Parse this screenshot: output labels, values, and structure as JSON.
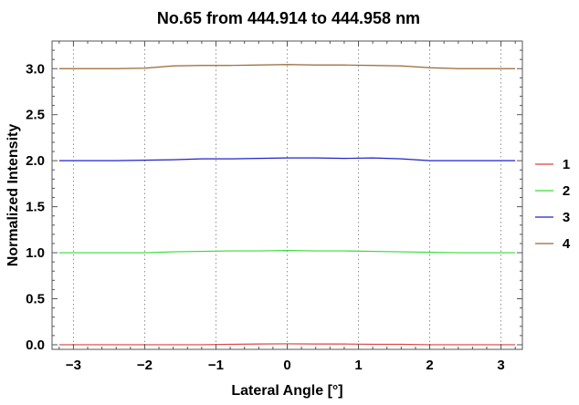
{
  "chart_data": {
    "type": "line",
    "title": "No.65  from 444.914 to 444.958 nm",
    "xlabel": "Lateral Angle [°]",
    "ylabel": "Normalized Intensity",
    "xlim": [
      -3.3,
      3.3
    ],
    "ylim": [
      -0.05,
      3.3
    ],
    "x_ticks": [
      -3,
      -2,
      -1,
      0,
      1,
      2,
      3
    ],
    "x_tick_labels": [
      "−3",
      "−2",
      "−1",
      "0",
      "1",
      "2",
      "3"
    ],
    "y_ticks": [
      0.0,
      0.5,
      1.0,
      1.5,
      2.0,
      2.5,
      3.0
    ],
    "y_tick_labels": [
      "0.0",
      "0.5",
      "1.0",
      "1.5",
      "2.0",
      "2.5",
      "3.0"
    ],
    "x_gridlines": [
      -3,
      -2,
      -1,
      0,
      1,
      2,
      3
    ],
    "grid": "vertical dotted",
    "legend_position": "right",
    "x": [
      -3.2,
      -2.8,
      -2.4,
      -2.0,
      -1.6,
      -1.2,
      -0.8,
      -0.4,
      0.0,
      0.4,
      0.8,
      1.2,
      1.6,
      2.0,
      2.4,
      2.8,
      3.2
    ],
    "series": [
      {
        "name": "1",
        "color": "#e04040",
        "values": [
          0.0,
          0.0,
          0.0,
          0.0,
          0.0,
          0.0,
          0.005,
          0.008,
          0.01,
          0.008,
          0.008,
          0.005,
          0.005,
          0.0,
          0.0,
          0.0,
          0.0
        ]
      },
      {
        "name": "2",
        "color": "#33dd33",
        "values": [
          1.0,
          1.0,
          1.0,
          1.0,
          1.01,
          1.015,
          1.02,
          1.02,
          1.025,
          1.02,
          1.02,
          1.015,
          1.01,
          1.005,
          1.0,
          1.0,
          1.0
        ]
      },
      {
        "name": "3",
        "color": "#2020cc",
        "values": [
          2.0,
          2.0,
          2.0,
          2.005,
          2.01,
          2.02,
          2.02,
          2.025,
          2.03,
          2.03,
          2.025,
          2.03,
          2.02,
          2.0,
          2.0,
          2.0,
          2.0
        ]
      },
      {
        "name": "4",
        "color": "#996633",
        "values": [
          3.0,
          3.0,
          3.0,
          3.005,
          3.03,
          3.035,
          3.035,
          3.04,
          3.045,
          3.04,
          3.04,
          3.035,
          3.03,
          3.01,
          3.0,
          3.0,
          3.0
        ]
      }
    ]
  }
}
